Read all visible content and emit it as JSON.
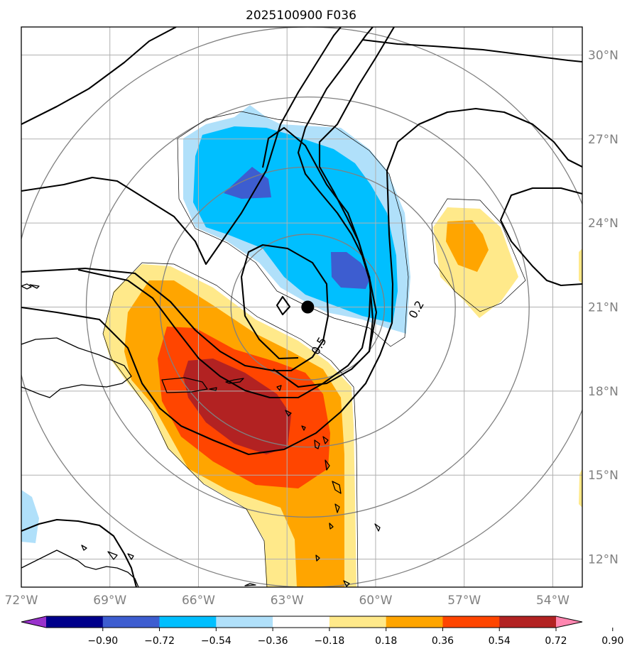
{
  "title": "2025100900 F036",
  "map": {
    "lon_range": [
      -72,
      -53
    ],
    "lat_range": [
      11,
      31
    ],
    "lon_ticks": [
      {
        "value": -72,
        "label": "72°W"
      },
      {
        "value": -69,
        "label": "69°W"
      },
      {
        "value": -66,
        "label": "66°W"
      },
      {
        "value": -63,
        "label": "63°W"
      },
      {
        "value": -60,
        "label": "60°W"
      },
      {
        "value": -57,
        "label": "57°W"
      },
      {
        "value": -54,
        "label": "54°W"
      }
    ],
    "lat_ticks": [
      {
        "value": 30,
        "label": "30°N"
      },
      {
        "value": 27,
        "label": "27°N"
      },
      {
        "value": 24,
        "label": "24°N"
      },
      {
        "value": 21,
        "label": "21°N"
      },
      {
        "value": 18,
        "label": "18°N"
      },
      {
        "value": 15,
        "label": "15°N"
      },
      {
        "value": 12,
        "label": "12°N"
      }
    ],
    "storm_center": {
      "lon": -62.3,
      "lat": 21.0
    },
    "range_rings_deg": [
      2.6,
      5.0,
      7.5,
      10.0
    ],
    "contour_labels": [
      {
        "text": "0.5",
        "lon": -61.9,
        "lat": 19.6
      },
      {
        "text": "0.2",
        "lon": -58.6,
        "lat": 20.9
      }
    ],
    "colors": {
      "grid": "#b0b0b0",
      "ring": "#808080",
      "contour": "#000000",
      "coast": "#000000",
      "level_neg3": "#3d5dd0",
      "level_neg2": "#00bfff",
      "level_neg1": "#b0e0fa",
      "level_pos1": "#ffe98a",
      "level_pos2": "#ffa500",
      "level_pos3": "#ff4500",
      "level_pos4": "#b22222"
    }
  },
  "colorbar": {
    "levels": [
      "−0.90",
      "−0.72",
      "−0.54",
      "−0.36",
      "−0.18",
      "0.18",
      "0.36",
      "0.54",
      "0.72",
      "0.90"
    ],
    "colors": [
      "#9932cc",
      "#00008b",
      "#3d5dd0",
      "#00bfff",
      "#b0e0fa",
      "#ffffff",
      "#ffe98a",
      "#ffa500",
      "#ff4500",
      "#b22222",
      "#ff86b0"
    ]
  }
}
